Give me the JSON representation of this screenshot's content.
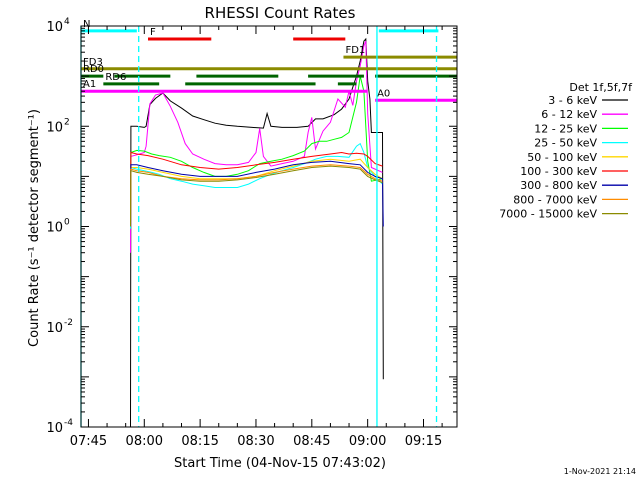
{
  "chart_data": {
    "type": "line",
    "title": "RHESSI Count Rates",
    "xlabel": "Start Time (04-Nov-15 07:43:02)",
    "ylabel": "Count Rate (s⁻¹ detector segment⁻¹)",
    "footer": "1-Nov-2021 21:14",
    "legend_title": "Det 1f,5f,7f",
    "legend_position": "right",
    "grid": false,
    "yscale": "log",
    "ylim": [
      0.0001,
      10000
    ],
    "xlim_minutes": [
      -2.0,
      99.0
    ],
    "x_ticks": [
      {
        "label": "07:45",
        "minute": 0
      },
      {
        "label": "08:00",
        "minute": 15
      },
      {
        "label": "08:15",
        "minute": 30
      },
      {
        "label": "08:30",
        "minute": 45
      },
      {
        "label": "08:45",
        "minute": 60
      },
      {
        "label": "09:00",
        "minute": 75
      },
      {
        "label": "09:15",
        "minute": 90
      }
    ],
    "y_ticks": [
      {
        "base": "10",
        "exp": "-4",
        "value": 0.0001
      },
      {
        "base": "10",
        "exp": "-2",
        "value": 0.01
      },
      {
        "base": "10",
        "exp": "0",
        "value": 1
      },
      {
        "base": "10",
        "exp": "2",
        "value": 100
      },
      {
        "base": "10",
        "exp": "4",
        "value": 10000
      }
    ],
    "series": [
      {
        "name": "3 - 6 keV",
        "color": "#000000",
        "points": [
          [
            11.3,
            0.0001
          ],
          [
            11.4,
            100
          ],
          [
            13,
            100
          ],
          [
            15,
            95
          ],
          [
            15.5,
            100
          ],
          [
            16.5,
            270
          ],
          [
            18,
            360
          ],
          [
            20,
            460
          ],
          [
            22,
            320
          ],
          [
            25,
            230
          ],
          [
            28,
            160
          ],
          [
            31,
            135
          ],
          [
            34,
            115
          ],
          [
            37,
            105
          ],
          [
            40,
            100
          ],
          [
            44,
            95
          ],
          [
            47,
            92
          ],
          [
            48,
            180
          ],
          [
            49,
            100
          ],
          [
            52,
            95
          ],
          [
            56,
            95
          ],
          [
            59,
            100
          ],
          [
            61,
            140
          ],
          [
            63,
            140
          ],
          [
            66,
            170
          ],
          [
            68,
            220
          ],
          [
            70,
            350
          ],
          [
            71,
            600
          ],
          [
            72,
            1000
          ],
          [
            73,
            2000
          ],
          [
            74,
            5000
          ],
          [
            74.5,
            5500
          ],
          [
            75,
            800
          ],
          [
            75.6,
            350
          ],
          [
            76,
            75
          ],
          [
            79,
            75
          ],
          [
            79.2,
            0.0009
          ]
        ]
      },
      {
        "name": "6 - 12 keV",
        "color": "#ff00ff",
        "points": [
          [
            11.3,
            0.3
          ],
          [
            11.4,
            25
          ],
          [
            13,
            27
          ],
          [
            15,
            30
          ],
          [
            15.5,
            40
          ],
          [
            16.5,
            280
          ],
          [
            18,
            420
          ],
          [
            20,
            460
          ],
          [
            22,
            250
          ],
          [
            24,
            120
          ],
          [
            26,
            45
          ],
          [
            28,
            28
          ],
          [
            31,
            22
          ],
          [
            34,
            18
          ],
          [
            37,
            17
          ],
          [
            40,
            17
          ],
          [
            43,
            19
          ],
          [
            45,
            30
          ],
          [
            46,
            90
          ],
          [
            47,
            25
          ],
          [
            49,
            16
          ],
          [
            52,
            18
          ],
          [
            55,
            20
          ],
          [
            58,
            25
          ],
          [
            59,
            75
          ],
          [
            60,
            150
          ],
          [
            61,
            35
          ],
          [
            63,
            80
          ],
          [
            65,
            120
          ],
          [
            67,
            350
          ],
          [
            69,
            240
          ],
          [
            70,
            500
          ],
          [
            71,
            260
          ],
          [
            72,
            800
          ],
          [
            73,
            1600
          ],
          [
            74,
            4000
          ],
          [
            74.5,
            5000
          ],
          [
            75,
            180
          ],
          [
            76,
            15
          ],
          [
            79,
            12
          ]
        ]
      },
      {
        "name": "12 - 25 keV",
        "color": "#00ff00",
        "points": [
          [
            11.3,
            0.9
          ],
          [
            11.4,
            30
          ],
          [
            13,
            33
          ],
          [
            15,
            32
          ],
          [
            17,
            28
          ],
          [
            19,
            26
          ],
          [
            22,
            24
          ],
          [
            25,
            20
          ],
          [
            28,
            15
          ],
          [
            31,
            12
          ],
          [
            34,
            10
          ],
          [
            37,
            10
          ],
          [
            40,
            11
          ],
          [
            43,
            13
          ],
          [
            46,
            18
          ],
          [
            49,
            20
          ],
          [
            52,
            22
          ],
          [
            55,
            26
          ],
          [
            58,
            32
          ],
          [
            60,
            45
          ],
          [
            62,
            50
          ],
          [
            64,
            50
          ],
          [
            66,
            55
          ],
          [
            68,
            60
          ],
          [
            70,
            75
          ],
          [
            72,
            300
          ],
          [
            73,
            1000
          ],
          [
            74,
            500
          ],
          [
            75,
            20
          ],
          [
            76,
            8
          ],
          [
            79,
            9
          ]
        ]
      },
      {
        "name": "25 - 50 keV",
        "color": "#00ffff",
        "points": [
          [
            11.3,
            0.9
          ],
          [
            11.4,
            15
          ],
          [
            13,
            14
          ],
          [
            15,
            13
          ],
          [
            17,
            12
          ],
          [
            19,
            11
          ],
          [
            22,
            9
          ],
          [
            25,
            8
          ],
          [
            28,
            7
          ],
          [
            31,
            6.5
          ],
          [
            34,
            6
          ],
          [
            37,
            6
          ],
          [
            40,
            6
          ],
          [
            43,
            7
          ],
          [
            46,
            9
          ],
          [
            49,
            11
          ],
          [
            52,
            13
          ],
          [
            55,
            15
          ],
          [
            58,
            18
          ],
          [
            61,
            22
          ],
          [
            64,
            25
          ],
          [
            67,
            25
          ],
          [
            70,
            24
          ],
          [
            72,
            40
          ],
          [
            73,
            45
          ],
          [
            74,
            30
          ],
          [
            75,
            15
          ],
          [
            77,
            10
          ],
          [
            79,
            7
          ]
        ]
      },
      {
        "name": "50 - 100 keV",
        "color": "#ffd700",
        "points": [
          [
            11.3,
            1.0
          ],
          [
            11.4,
            15
          ],
          [
            13,
            15
          ],
          [
            16,
            14
          ],
          [
            20,
            12
          ],
          [
            25,
            10
          ],
          [
            30,
            9
          ],
          [
            35,
            9
          ],
          [
            40,
            9
          ],
          [
            45,
            10
          ],
          [
            50,
            13
          ],
          [
            55,
            16
          ],
          [
            60,
            20
          ],
          [
            65,
            22
          ],
          [
            70,
            20
          ],
          [
            73,
            22
          ],
          [
            75,
            15
          ],
          [
            77,
            11
          ],
          [
            79,
            9
          ]
        ]
      },
      {
        "name": "100 - 300 keV",
        "color": "#ff0000",
        "points": [
          [
            11.3,
            1.0
          ],
          [
            11.4,
            30
          ],
          [
            13,
            28
          ],
          [
            16,
            26
          ],
          [
            20,
            22
          ],
          [
            25,
            17
          ],
          [
            30,
            15
          ],
          [
            35,
            14
          ],
          [
            40,
            15
          ],
          [
            45,
            17
          ],
          [
            50,
            19
          ],
          [
            55,
            22
          ],
          [
            60,
            25
          ],
          [
            65,
            28
          ],
          [
            68,
            30
          ],
          [
            70,
            28
          ],
          [
            72,
            29
          ],
          [
            74,
            28
          ],
          [
            75,
            25
          ],
          [
            77,
            18
          ],
          [
            79,
            16
          ]
        ]
      },
      {
        "name": "300 - 800 keV",
        "color": "#0000aa",
        "points": [
          [
            11.3,
            1.0
          ],
          [
            11.4,
            17
          ],
          [
            13,
            17
          ],
          [
            16,
            15
          ],
          [
            20,
            13
          ],
          [
            25,
            11
          ],
          [
            30,
            10
          ],
          [
            35,
            10
          ],
          [
            40,
            10
          ],
          [
            45,
            12
          ],
          [
            50,
            14
          ],
          [
            55,
            17
          ],
          [
            60,
            19
          ],
          [
            65,
            20
          ],
          [
            70,
            18
          ],
          [
            73,
            17
          ],
          [
            75,
            12
          ],
          [
            77,
            10
          ],
          [
            79,
            9
          ],
          [
            79.2,
            1
          ]
        ]
      },
      {
        "name": "800 - 7000 keV",
        "color": "#ff8c00",
        "points": [
          [
            11.3,
            1.0
          ],
          [
            11.4,
            14
          ],
          [
            13,
            13
          ],
          [
            16,
            12
          ],
          [
            20,
            10
          ],
          [
            25,
            9
          ],
          [
            30,
            8.5
          ],
          [
            35,
            8.5
          ],
          [
            40,
            9
          ],
          [
            45,
            10
          ],
          [
            50,
            12
          ],
          [
            55,
            14
          ],
          [
            60,
            16
          ],
          [
            65,
            17
          ],
          [
            70,
            16
          ],
          [
            73,
            15
          ],
          [
            75,
            11
          ],
          [
            77,
            9
          ],
          [
            79,
            8
          ]
        ]
      },
      {
        "name": "7000 - 15000 keV",
        "color": "#8b8b00",
        "points": [
          [
            11.3,
            1.0
          ],
          [
            11.4,
            13
          ],
          [
            13,
            12
          ],
          [
            16,
            11
          ],
          [
            20,
            10
          ],
          [
            25,
            8.5
          ],
          [
            30,
            8
          ],
          [
            35,
            8
          ],
          [
            40,
            8.5
          ],
          [
            45,
            9.5
          ],
          [
            50,
            11
          ],
          [
            55,
            13
          ],
          [
            60,
            15
          ],
          [
            65,
            16
          ],
          [
            70,
            15
          ],
          [
            73,
            14
          ],
          [
            75,
            10
          ],
          [
            77,
            8.5
          ],
          [
            79,
            7.5
          ]
        ]
      }
    ],
    "flags": [
      {
        "label": "N",
        "color": "#00ffff",
        "y": 8000,
        "segments": [
          [
            -2,
            13
          ],
          [
            78,
            94
          ]
        ]
      },
      {
        "label": "F",
        "color": "#ee0000",
        "y": 5500,
        "segments": [
          [
            16,
            33
          ],
          [
            55,
            69
          ]
        ]
      },
      {
        "label": "FD1",
        "color": "#8b8b00",
        "y": 2400,
        "segments": [
          [
            68.5,
            99
          ]
        ]
      },
      {
        "label": "FD3",
        "color": "#8b8b00",
        "y": 1400,
        "segments": [
          [
            -2,
            99
          ]
        ]
      },
      {
        "label": "RD0",
        "color": "#006400",
        "y": 1000,
        "segments": [
          [
            -2,
            4
          ],
          [
            7,
            22
          ],
          [
            29,
            51
          ],
          [
            59,
            74
          ],
          [
            77,
            99
          ]
        ]
      },
      {
        "label": "RD6",
        "color": "#006400",
        "y": 700,
        "segments": [
          [
            4,
            19
          ],
          [
            26,
            61
          ],
          [
            67,
            72
          ]
        ]
      },
      {
        "label": "A1",
        "color": "#ff00ff",
        "y": 500,
        "segments": [
          [
            -2,
            75
          ]
        ]
      },
      {
        "label": "A0",
        "color": "#ff00ff",
        "y": 330,
        "segments": [
          [
            77,
            99
          ]
        ]
      }
    ],
    "vlines": [
      {
        "minute": -2,
        "color": "#00ffff",
        "style": "solid"
      },
      {
        "minute": 13.5,
        "color": "#00ffff",
        "style": "dashed"
      },
      {
        "minute": 77.5,
        "color": "#00ffff",
        "style": "solid"
      },
      {
        "minute": 93.5,
        "color": "#00ffff",
        "style": "dashed"
      }
    ]
  }
}
